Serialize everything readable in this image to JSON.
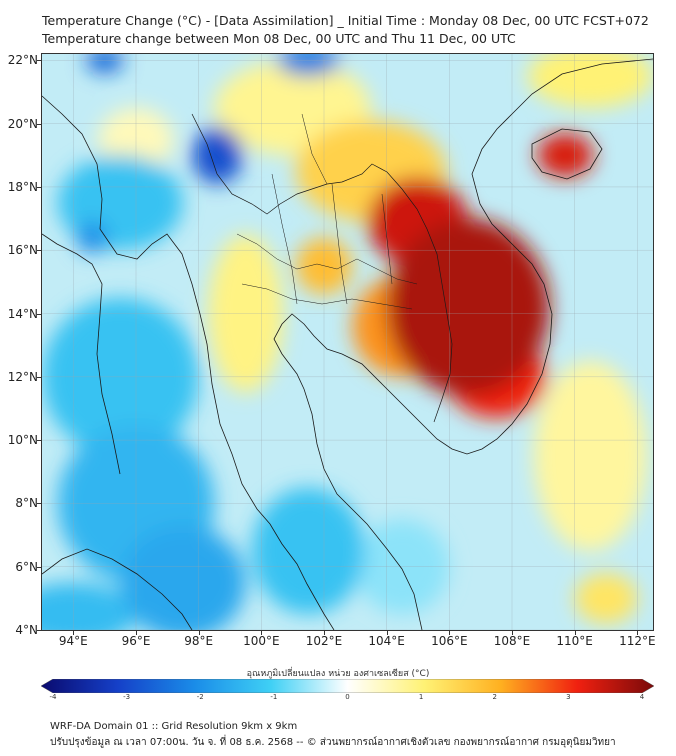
{
  "header": {
    "title_line1": "Temperature Change (°C) - [Data Assimilation] _ Initial Time : Monday 08 Dec, 00 UTC FCST+072",
    "title_line2": "Temperature change between Mon 08 Dec, 00 UTC and Thu 11 Dec, 00 UTC"
  },
  "map": {
    "lon_range": [
      93,
      112.5
    ],
    "lat_range": [
      4,
      22.2
    ],
    "lat_labels": [
      "4°N",
      "6°N",
      "8°N",
      "10°N",
      "12°N",
      "14°N",
      "16°N",
      "18°N",
      "20°N",
      "22°N"
    ],
    "lat_values": [
      4,
      6,
      8,
      10,
      12,
      14,
      16,
      18,
      20,
      22
    ],
    "lon_labels": [
      "94°E",
      "96°E",
      "98°E",
      "100°E",
      "102°E",
      "104°E",
      "106°E",
      "108°E",
      "110°E",
      "112°E"
    ],
    "lon_values": [
      94,
      96,
      98,
      100,
      102,
      104,
      106,
      108,
      110,
      112
    ],
    "anomalies": [
      {
        "lon": 106.6,
        "lat": 14.2,
        "value": 3.6,
        "rx": 2.6,
        "ry": 2.8
      },
      {
        "lon": 105.0,
        "lat": 16.9,
        "value": 3.3,
        "rx": 1.6,
        "ry": 1.4
      },
      {
        "lon": 107.5,
        "lat": 12.0,
        "value": 3.0,
        "rx": 1.6,
        "ry": 1.3
      },
      {
        "lon": 104.5,
        "lat": 13.6,
        "value": 2.2,
        "rx": 1.6,
        "ry": 1.6
      },
      {
        "lon": 109.7,
        "lat": 19.0,
        "value": 3.2,
        "rx": 0.9,
        "ry": 0.7
      },
      {
        "lon": 102.0,
        "lat": 15.5,
        "value": 1.8,
        "rx": 0.9,
        "ry": 0.9
      },
      {
        "lon": 103.5,
        "lat": 18.5,
        "value": 1.5,
        "rx": 2.4,
        "ry": 1.6
      },
      {
        "lon": 110.5,
        "lat": 21.5,
        "value": 1.0,
        "rx": 2.0,
        "ry": 1.0
      },
      {
        "lon": 101.0,
        "lat": 20.5,
        "value": 0.8,
        "rx": 2.5,
        "ry": 1.5
      },
      {
        "lon": 99.5,
        "lat": 14.0,
        "value": 0.9,
        "rx": 1.2,
        "ry": 2.5
      },
      {
        "lon": 96.0,
        "lat": 19.5,
        "value": 0.5,
        "rx": 1.2,
        "ry": 1.0
      },
      {
        "lon": 110.5,
        "lat": 9.5,
        "value": 0.7,
        "rx": 1.8,
        "ry": 3.0
      },
      {
        "lon": 98.6,
        "lat": 19.0,
        "value": -2.8,
        "rx": 0.8,
        "ry": 0.9
      },
      {
        "lon": 95.0,
        "lat": 22.0,
        "value": -2.5,
        "rx": 0.6,
        "ry": 0.4
      },
      {
        "lon": 101.5,
        "lat": 22.0,
        "value": -2.2,
        "rx": 1.0,
        "ry": 0.5
      },
      {
        "lon": 94.6,
        "lat": 16.4,
        "value": -2.0,
        "rx": 0.5,
        "ry": 0.5
      },
      {
        "lon": 95.5,
        "lat": 17.5,
        "value": -1.2,
        "rx": 2.0,
        "ry": 1.5
      },
      {
        "lon": 95.5,
        "lat": 12.0,
        "value": -1.2,
        "rx": 2.5,
        "ry": 2.5
      },
      {
        "lon": 96.0,
        "lat": 8.0,
        "value": -1.4,
        "rx": 2.5,
        "ry": 2.5
      },
      {
        "lon": 97.5,
        "lat": 5.5,
        "value": -1.6,
        "rx": 2.0,
        "ry": 1.8
      },
      {
        "lon": 101.5,
        "lat": 6.5,
        "value": -1.2,
        "rx": 1.8,
        "ry": 2.0
      },
      {
        "lon": 94.0,
        "lat": 4.5,
        "value": -1.3,
        "rx": 2.0,
        "ry": 1.0
      },
      {
        "lon": 104.5,
        "lat": 6.0,
        "value": -0.6,
        "rx": 1.5,
        "ry": 1.5
      },
      {
        "lon": 111.0,
        "lat": 5.0,
        "value": 1.2,
        "rx": 1.0,
        "ry": 0.8
      }
    ]
  },
  "colorbar": {
    "title": "อุณหภูมิเปลี่ยนแปลง หน่วย องศาเซลเซียส (°C)",
    "tick_labels": [
      "-4",
      "-3",
      "-2",
      "-1",
      "0",
      "1",
      "2",
      "3",
      "4"
    ],
    "tick_values": [
      -4,
      -3,
      -2,
      -1,
      0,
      1,
      2,
      3,
      4
    ],
    "range": [
      -4,
      4
    ],
    "colors": [
      "#0a0a6e",
      "#1540c8",
      "#1a8ce8",
      "#3fd0f5",
      "#ffffff",
      "#fff275",
      "#ffb020",
      "#f02010",
      "#7a0a0a"
    ]
  },
  "footer": {
    "line1": "WRF-DA Domain 01 :: Grid Resolution 9km x 9km",
    "line2": "ปรับปรุงข้อมูล ณ เวลา 07:00น. วัน จ. ที่ 08 ธ.ค. 2568 -- © ส่วนพยากรณ์อากาศเชิงตัวเลข กองพยากรณ์อากาศ กรมอุตุนิยมวิทยา"
  }
}
